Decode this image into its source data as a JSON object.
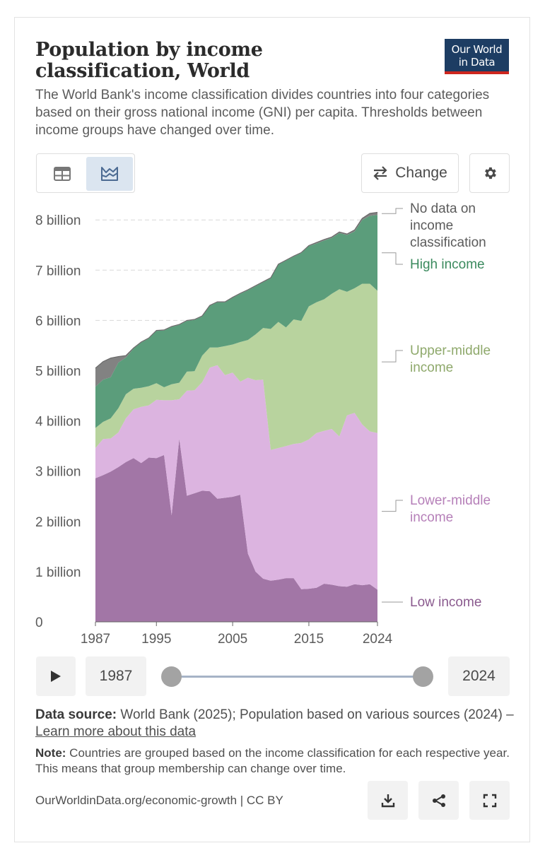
{
  "header": {
    "title": "Population by income classification, World",
    "subtitle": "The World Bank's income classification divides countries into four categories based on their gross national income (GNI) per capita. Thresholds between income groups have changed over time.",
    "logo_line1": "Our World",
    "logo_line2": "in Data"
  },
  "controls": {
    "table_icon": "table-icon",
    "chart_icon": "line-chart-icon",
    "change_label": "Change",
    "change_icon": "swap-arrows-icon",
    "settings_icon": "gear-icon"
  },
  "timeline": {
    "start_year": "1987",
    "end_year": "2024",
    "play_icon": "play-icon"
  },
  "footer": {
    "source_label": "Data source:",
    "source_text": " World Bank (2025); Population based on various sources (2024) – ",
    "source_link": "Learn more about this data",
    "note_label": "Note:",
    "note_text": " Countries are grouped based on the income classification for each respective year. This means that group membership can change over time.",
    "url": "OurWorldinData.org/economic-growth | CC BY",
    "download_icon": "download-icon",
    "share_icon": "share-icon",
    "fullscreen_icon": "fullscreen-icon"
  },
  "chart_data": {
    "type": "area",
    "stacked": true,
    "title": "Population by income classification, World",
    "y_unit": "billion",
    "ylim": [
      0,
      8.2
    ],
    "y_ticks": [
      0,
      1,
      2,
      3,
      4,
      5,
      6,
      7,
      8
    ],
    "y_tick_labels": [
      "0",
      "1 billion",
      "2 billion",
      "3 billion",
      "4 billion",
      "5 billion",
      "6 billion",
      "7 billion",
      "8 billion"
    ],
    "x_ticks": [
      1987,
      1995,
      2005,
      2015,
      2024
    ],
    "x_tick_labels": [
      "1987",
      "1995",
      "2005",
      "2015",
      "2024"
    ],
    "xlim": [
      1987,
      2024
    ],
    "x": [
      1987,
      1988,
      1989,
      1990,
      1991,
      1992,
      1993,
      1994,
      1995,
      1996,
      1997,
      1998,
      1999,
      2000,
      2001,
      2002,
      2003,
      2004,
      2005,
      2006,
      2007,
      2008,
      2009,
      2010,
      2011,
      2012,
      2013,
      2014,
      2015,
      2016,
      2017,
      2018,
      2019,
      2020,
      2021,
      2022,
      2023,
      2024
    ],
    "series": [
      {
        "name": "Low income",
        "color": "#a276a6",
        "values": [
          2.86,
          2.92,
          2.99,
          3.08,
          3.18,
          3.26,
          3.16,
          3.27,
          3.26,
          3.32,
          2.12,
          3.65,
          2.51,
          2.56,
          2.61,
          2.6,
          2.45,
          2.47,
          2.49,
          2.53,
          1.36,
          1.0,
          0.86,
          0.82,
          0.84,
          0.87,
          0.87,
          0.65,
          0.66,
          0.68,
          0.76,
          0.74,
          0.71,
          0.7,
          0.75,
          0.73,
          0.75,
          0.64
        ]
      },
      {
        "name": "Lower-middle income",
        "color": "#dcb4e0",
        "values": [
          0.6,
          0.72,
          0.66,
          0.69,
          0.87,
          0.97,
          1.12,
          1.04,
          1.16,
          1.09,
          2.29,
          0.78,
          2.09,
          2.05,
          2.16,
          2.46,
          2.66,
          2.44,
          2.47,
          2.25,
          3.5,
          3.81,
          3.96,
          2.6,
          2.62,
          2.63,
          2.67,
          2.91,
          2.97,
          3.08,
          3.04,
          3.1,
          2.98,
          3.41,
          3.41,
          3.2,
          3.04,
          3.12
        ]
      },
      {
        "name": "Upper-middle income",
        "color": "#b8d39e",
        "values": [
          0.4,
          0.34,
          0.4,
          0.48,
          0.48,
          0.41,
          0.38,
          0.38,
          0.33,
          0.26,
          0.32,
          0.33,
          0.38,
          0.38,
          0.53,
          0.4,
          0.35,
          0.58,
          0.56,
          0.79,
          0.75,
          0.91,
          1.03,
          2.41,
          2.51,
          2.36,
          2.48,
          2.43,
          2.65,
          2.6,
          2.62,
          2.69,
          2.93,
          2.46,
          2.48,
          2.8,
          2.94,
          2.83
        ]
      },
      {
        "name": "High income",
        "color": "#5b9d7b",
        "values": [
          0.82,
          0.84,
          0.82,
          0.91,
          0.73,
          0.8,
          0.9,
          0.95,
          1.04,
          1.13,
          1.14,
          1.15,
          1.01,
          1.02,
          0.78,
          0.83,
          0.9,
          0.87,
          0.93,
          0.96,
          0.99,
          0.96,
          0.91,
          1.01,
          1.14,
          1.33,
          1.25,
          1.35,
          1.2,
          1.17,
          1.17,
          1.11,
          1.12,
          1.13,
          1.13,
          1.27,
          1.35,
          1.51
        ]
      },
      {
        "name": "No data on income classification",
        "color": "#828282",
        "values": [
          0.37,
          0.36,
          0.38,
          0.12,
          0.04,
          0.01,
          0.01,
          0.01,
          0.01,
          0.01,
          0.01,
          0.01,
          0.01,
          0.01,
          0.01,
          0.01,
          0.01,
          0.01,
          0.01,
          0.01,
          0.01,
          0.01,
          0.01,
          0.01,
          0.01,
          0.01,
          0.01,
          0.01,
          0.01,
          0.02,
          0.02,
          0.02,
          0.02,
          0.02,
          0.03,
          0.03,
          0.05,
          0.05
        ]
      }
    ],
    "legend": [
      {
        "label": "No data on income classification",
        "lines": [
          "No data on",
          "income",
          "classification"
        ],
        "color": "#5b5b5b"
      },
      {
        "label": "High income",
        "lines": [
          "High income"
        ],
        "color": "#3b8a5e"
      },
      {
        "label": "Upper-middle income",
        "lines": [
          "Upper-middle",
          "income"
        ],
        "color": "#8fa96c"
      },
      {
        "label": "Lower-middle income",
        "lines": [
          "Lower-middle",
          "income"
        ],
        "color": "#b680b9"
      },
      {
        "label": "Low income",
        "lines": [
          "Low income"
        ],
        "color": "#8a5a8e"
      }
    ]
  }
}
